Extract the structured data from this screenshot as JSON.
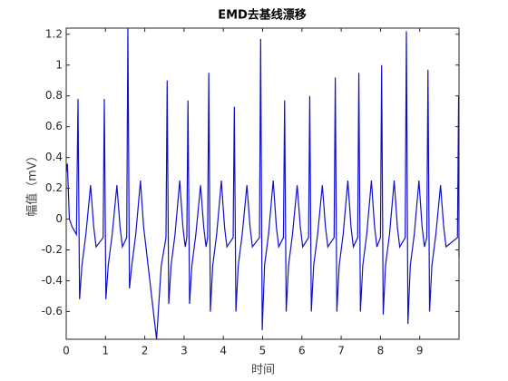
{
  "chart_data": {
    "type": "line",
    "title": "EMD去基线漂移",
    "xlabel": "时间",
    "ylabel": "幅值（mV）",
    "xlim": [
      0,
      10
    ],
    "ylim": [
      -0.78,
      1.24
    ],
    "xticks": [
      0,
      1,
      2,
      3,
      4,
      5,
      6,
      7,
      8,
      9
    ],
    "yticks": [
      -0.6,
      -0.4,
      -0.2,
      0,
      0.2,
      0.4,
      0.6,
      0.8,
      1,
      1.2
    ],
    "color": "#1010c8",
    "x": [
      0,
      0.03,
      0.08,
      0.15,
      0.26,
      0.3,
      0.34,
      0.4,
      0.5,
      0.62,
      0.7,
      0.76,
      0.94,
      0.97,
      1.01,
      1.07,
      1.17,
      1.29,
      1.37,
      1.43,
      1.54,
      1.57,
      1.61,
      1.67,
      1.77,
      1.89,
      1.97,
      2.03,
      2.3,
      2.42,
      2.54,
      2.57,
      2.61,
      2.67,
      2.77,
      2.89,
      2.97,
      3.03,
      3.07,
      3.1,
      3.14,
      3.2,
      3.3,
      3.42,
      3.5,
      3.56,
      3.6,
      3.63,
      3.67,
      3.73,
      3.83,
      3.95,
      4.03,
      4.09,
      4.25,
      4.28,
      4.32,
      4.38,
      4.48,
      4.6,
      4.68,
      4.74,
      4.92,
      4.95,
      4.99,
      5.05,
      5.15,
      5.27,
      5.35,
      5.41,
      5.53,
      5.56,
      5.6,
      5.66,
      5.76,
      5.88,
      5.96,
      6.02,
      6.17,
      6.2,
      6.24,
      6.3,
      6.4,
      6.52,
      6.6,
      6.66,
      6.82,
      6.85,
      6.89,
      6.95,
      7.05,
      7.17,
      7.25,
      7.31,
      7.42,
      7.45,
      7.49,
      7.55,
      7.65,
      7.77,
      7.85,
      7.91,
      8.0,
      8.03,
      8.07,
      8.13,
      8.23,
      8.35,
      8.43,
      8.49,
      8.63,
      8.66,
      8.7,
      8.76,
      8.86,
      8.98,
      9.06,
      9.12,
      9.18,
      9.21,
      9.25,
      9.31,
      9.41,
      9.53,
      9.61,
      9.67,
      9.96,
      9.99,
      10.0
    ],
    "values": [
      0.3,
      0.36,
      0.0,
      -0.05,
      -0.1,
      0.78,
      -0.52,
      -0.3,
      -0.1,
      0.22,
      -0.05,
      -0.18,
      -0.12,
      0.78,
      -0.52,
      -0.3,
      -0.1,
      0.22,
      -0.05,
      -0.18,
      -0.12,
      1.24,
      -0.45,
      -0.3,
      -0.1,
      0.25,
      -0.05,
      -0.18,
      -0.78,
      -0.3,
      -0.12,
      0.9,
      -0.55,
      -0.3,
      -0.1,
      0.25,
      -0.05,
      -0.18,
      -0.12,
      0.77,
      -0.55,
      -0.3,
      -0.1,
      0.22,
      -0.05,
      -0.18,
      -0.12,
      0.95,
      -0.6,
      -0.3,
      -0.1,
      0.25,
      -0.05,
      -0.18,
      -0.12,
      0.73,
      -0.6,
      -0.3,
      -0.1,
      0.22,
      -0.05,
      -0.18,
      -0.12,
      1.17,
      -0.72,
      -0.3,
      -0.1,
      0.25,
      -0.05,
      -0.18,
      -0.12,
      0.77,
      -0.6,
      -0.3,
      -0.1,
      0.22,
      -0.05,
      -0.18,
      -0.12,
      0.8,
      -0.6,
      -0.3,
      -0.1,
      0.22,
      -0.05,
      -0.18,
      -0.12,
      0.92,
      -0.6,
      -0.3,
      -0.1,
      0.25,
      -0.05,
      -0.18,
      -0.12,
      0.95,
      -0.6,
      -0.3,
      -0.1,
      0.25,
      -0.05,
      -0.18,
      -0.12,
      1.0,
      -0.62,
      -0.3,
      -0.1,
      0.25,
      -0.05,
      -0.18,
      -0.12,
      1.22,
      -0.68,
      -0.3,
      -0.1,
      0.25,
      -0.05,
      -0.18,
      -0.12,
      0.97,
      -0.6,
      -0.3,
      -0.1,
      0.22,
      -0.05,
      -0.18,
      -0.12,
      0.8,
      -0.25
    ]
  }
}
